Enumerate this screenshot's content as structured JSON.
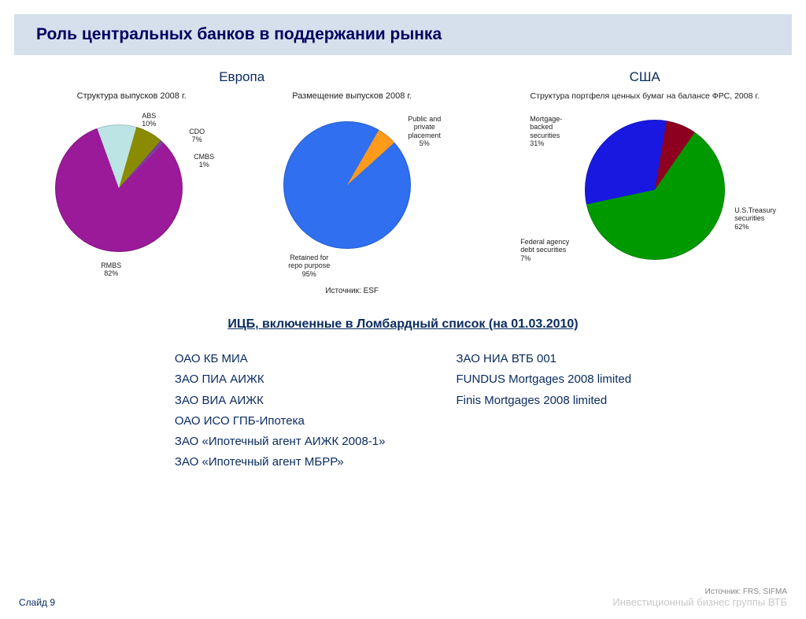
{
  "title": "Роль центральных банков в поддержании рынка",
  "colors": {
    "title_bg": "#d6e0ec",
    "title_text": "#000060",
    "body_text": "#0b2c60"
  },
  "region_europe": {
    "title": "Европа",
    "chart1": {
      "type": "pie",
      "subtitle": "Структура выпусков 2008 г.",
      "diameter": 162,
      "slices": [
        {
          "label": "RMBS",
          "pct": 82,
          "color": "#9a1a9a",
          "label_text": "RMBS\n82%"
        },
        {
          "label": "ABS",
          "pct": 10,
          "color": "#bde4e4",
          "label_text": "ABS\n10%"
        },
        {
          "label": "CDO",
          "pct": 7,
          "color": "#8b8b00",
          "label_text": "CDO\n7%"
        },
        {
          "label": "CMBS",
          "pct": 1,
          "color": "#7a3fa0",
          "label_text": "CMBS\n1%"
        }
      ]
    },
    "chart2": {
      "type": "pie",
      "subtitle": "Размещение выпусков 2008 г.",
      "diameter": 162,
      "slices": [
        {
          "label": "Retained for repo purpose",
          "pct": 95,
          "color": "#2f6ff0",
          "label_text": "Retained for\nrepo purpose\n95%"
        },
        {
          "label": "Public and private placement",
          "pct": 5,
          "color": "#ff9a1a",
          "label_text": "Public and\nprivate\nplacement\n5%"
        }
      ],
      "source": "Источник: ESF"
    }
  },
  "region_usa": {
    "title": "США",
    "chart": {
      "type": "pie",
      "subtitle": "Структура портфеля ценных бумаг на балансе ФРС, 2008 г.",
      "diameter": 178,
      "slices": [
        {
          "label": "U.S.Treasury securities",
          "pct": 62,
          "color": "#009a00",
          "label_text": "U.S.Treasury\nsecurities\n62%"
        },
        {
          "label": "Mortgage-backed securities",
          "pct": 31,
          "color": "#1818e0",
          "label_text": "Mortgage-\nbacked\nsecurities\n31%"
        },
        {
          "label": "Federal agency debt securities",
          "pct": 7,
          "color": "#8e0020",
          "label_text": "Federal agency\ndebt securities\n7%"
        }
      ]
    }
  },
  "lombard": {
    "title": "ИЦБ, включенные в Ломбардный список (на 01.03.2010)",
    "col1": [
      "ОАО КБ МИА",
      "ЗАО ПИА АИЖК",
      "ЗАО ВИА АИЖК",
      "ОАО ИСО ГПБ-Ипотека",
      "ЗАО «Ипотечный агент АИЖК 2008-1»",
      "ЗАО «Ипотечный агент МБРР»"
    ],
    "col2": [
      "ЗАО НИА ВТБ 001",
      "FUNDUS Mortgages 2008 limited",
      "Finis Mortgages 2008 limited"
    ]
  },
  "footer": {
    "slide": "Слайд 9",
    "source": "Источник: FRS, SIFMA",
    "vtb": "Инвестиционный бизнес группы ВТБ"
  }
}
